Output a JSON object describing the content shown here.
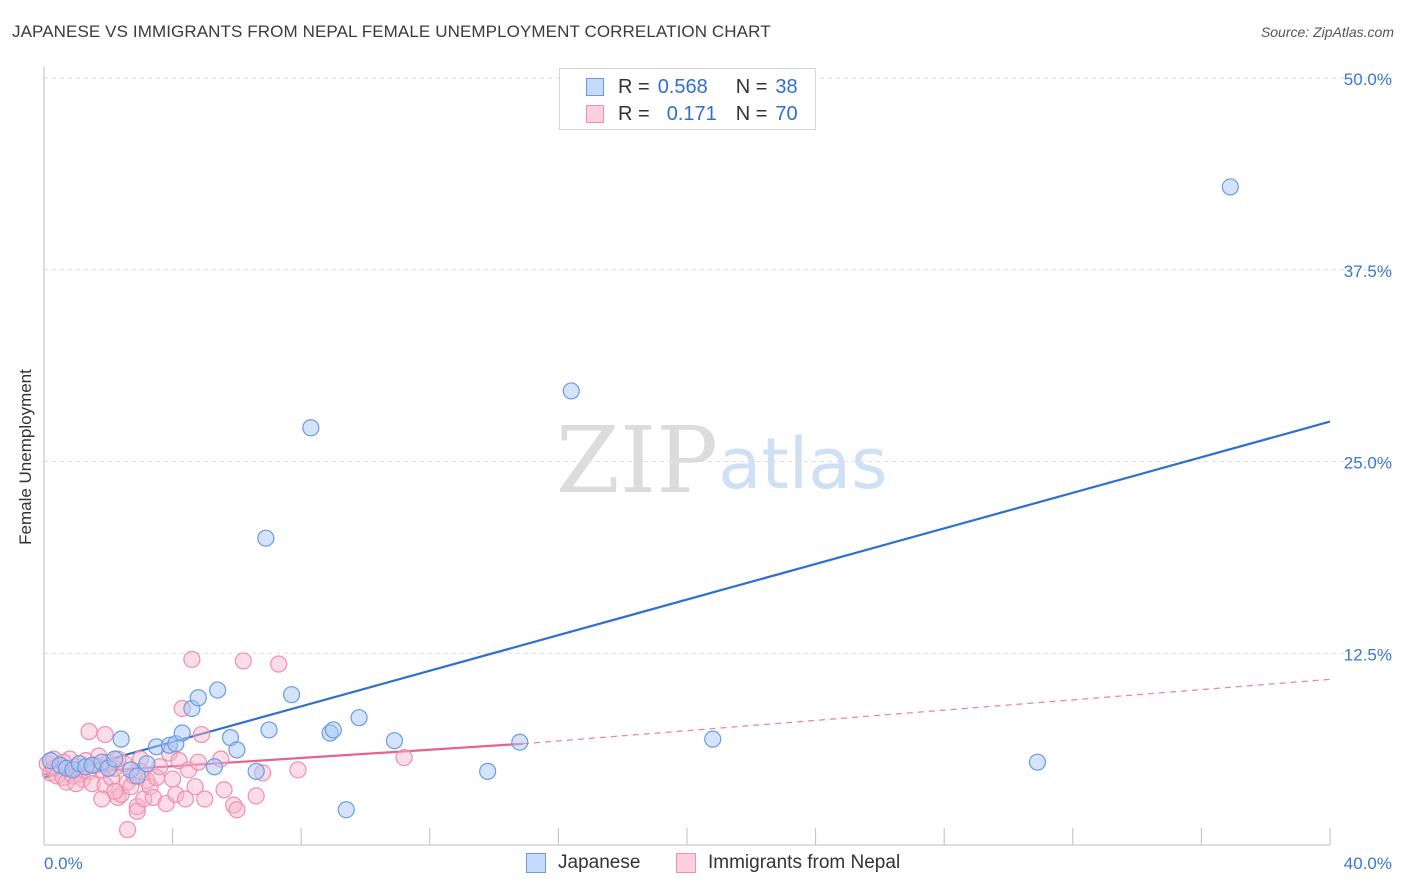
{
  "header": {
    "title": "JAPANESE VS IMMIGRANTS FROM NEPAL FEMALE UNEMPLOYMENT CORRELATION CHART",
    "source": "Source: ZipAtlas.com"
  },
  "watermark": {
    "zip": "ZIP",
    "atlas": "atlas"
  },
  "legend_top": {
    "rows": [
      {
        "r_label": "R =",
        "r_value": "0.568",
        "n_label": "N =",
        "n_value": "38"
      },
      {
        "r_label": "R =",
        "r_value": "0.171",
        "n_label": "N =",
        "n_value": "70"
      }
    ]
  },
  "chart_data": {
    "type": "scatter",
    "title": "JAPANESE VS IMMIGRANTS FROM NEPAL FEMALE UNEMPLOYMENT CORRELATION CHART",
    "xlabel": "",
    "ylabel": "Female Unemployment",
    "xlim": [
      0,
      40
    ],
    "ylim": [
      0,
      50
    ],
    "x_tick_labels": [
      "0.0%",
      "40.0%"
    ],
    "y_tick_labels": [
      "12.5%",
      "25.0%",
      "37.5%",
      "50.0%"
    ],
    "y_tick_values": [
      12.5,
      25.0,
      37.5,
      50.0
    ],
    "grid": true,
    "colors": {
      "japanese": "#2f6fd0",
      "nepal": "#e8628f",
      "tick_label": "#3b76d0"
    },
    "series": [
      {
        "name": "Japanese",
        "points": [
          [
            0.2,
            5.5
          ],
          [
            0.5,
            5.2
          ],
          [
            0.7,
            5.0
          ],
          [
            0.9,
            4.9
          ],
          [
            1.1,
            5.3
          ],
          [
            1.3,
            5.1
          ],
          [
            1.5,
            5.2
          ],
          [
            1.8,
            5.4
          ],
          [
            2.0,
            5.0
          ],
          [
            2.2,
            5.6
          ],
          [
            2.4,
            6.9
          ],
          [
            2.7,
            4.9
          ],
          [
            2.9,
            4.5
          ],
          [
            3.2,
            5.3
          ],
          [
            3.5,
            6.4
          ],
          [
            3.9,
            6.5
          ],
          [
            4.1,
            6.6
          ],
          [
            4.3,
            7.3
          ],
          [
            4.6,
            8.9
          ],
          [
            4.8,
            9.6
          ],
          [
            5.3,
            5.1
          ],
          [
            5.4,
            10.1
          ],
          [
            5.8,
            7.0
          ],
          [
            6.0,
            6.2
          ],
          [
            6.6,
            4.8
          ],
          [
            6.9,
            20.0
          ],
          [
            7.0,
            7.5
          ],
          [
            7.7,
            9.8
          ],
          [
            8.3,
            27.2
          ],
          [
            8.9,
            7.3
          ],
          [
            9.0,
            7.5
          ],
          [
            9.4,
            2.3
          ],
          [
            9.8,
            8.3
          ],
          [
            10.9,
            6.8
          ],
          [
            13.8,
            4.8
          ],
          [
            14.8,
            6.7
          ],
          [
            20.8,
            6.9
          ],
          [
            30.9,
            5.4
          ],
          [
            36.9,
            42.9
          ],
          [
            16.4,
            29.6
          ]
        ],
        "trend": {
          "x0": 0,
          "y0": 4.4,
          "x1": 40,
          "y1": 27.6
        }
      },
      {
        "name": "Immigrants from Nepal",
        "points": [
          [
            0.1,
            5.3
          ],
          [
            0.2,
            4.7
          ],
          [
            0.3,
            5.0
          ],
          [
            0.4,
            4.5
          ],
          [
            0.5,
            5.2
          ],
          [
            0.6,
            4.4
          ],
          [
            0.7,
            4.1
          ],
          [
            0.8,
            5.6
          ],
          [
            0.9,
            4.5
          ],
          [
            1.0,
            5.1
          ],
          [
            1.1,
            4.6
          ],
          [
            1.2,
            4.3
          ],
          [
            1.3,
            5.5
          ],
          [
            1.4,
            4.8
          ],
          [
            1.5,
            4.0
          ],
          [
            1.4,
            7.4
          ],
          [
            1.6,
            5.2
          ],
          [
            1.7,
            5.8
          ],
          [
            1.8,
            4.9
          ],
          [
            1.9,
            3.9
          ],
          [
            1.8,
            3.0
          ],
          [
            2.0,
            5.4
          ],
          [
            2.1,
            4.4
          ],
          [
            2.2,
            5.0
          ],
          [
            2.3,
            3.1
          ],
          [
            2.4,
            3.3
          ],
          [
            2.5,
            5.3
          ],
          [
            2.6,
            4.1
          ],
          [
            2.7,
            3.8
          ],
          [
            2.6,
            1.0
          ],
          [
            2.8,
            4.5
          ],
          [
            2.9,
            2.5
          ],
          [
            2.9,
            2.2
          ],
          [
            3.0,
            5.6
          ],
          [
            3.1,
            3.0
          ],
          [
            3.2,
            4.2
          ],
          [
            3.3,
            3.8
          ],
          [
            3.4,
            3.1
          ],
          [
            3.5,
            4.4
          ],
          [
            3.6,
            5.1
          ],
          [
            1.9,
            7.2
          ],
          [
            3.8,
            2.7
          ],
          [
            3.9,
            6.0
          ],
          [
            4.0,
            4.3
          ],
          [
            4.1,
            3.3
          ],
          [
            4.2,
            5.5
          ],
          [
            4.3,
            8.9
          ],
          [
            4.5,
            4.9
          ],
          [
            4.6,
            12.1
          ],
          [
            4.7,
            3.8
          ],
          [
            4.8,
            5.4
          ],
          [
            4.9,
            7.2
          ],
          [
            5.0,
            3.0
          ],
          [
            5.6,
            3.6
          ],
          [
            5.9,
            2.6
          ],
          [
            5.5,
            5.6
          ],
          [
            6.0,
            2.3
          ],
          [
            6.2,
            12.0
          ],
          [
            6.6,
            3.2
          ],
          [
            6.8,
            4.7
          ],
          [
            7.3,
            11.8
          ],
          [
            7.9,
            4.9
          ],
          [
            11.2,
            5.7
          ],
          [
            0.3,
            5.6
          ],
          [
            0.6,
            5.4
          ],
          [
            1.0,
            4.0
          ],
          [
            2.3,
            5.6
          ],
          [
            3.0,
            4.8
          ],
          [
            2.2,
            3.5
          ],
          [
            4.4,
            3.0
          ]
        ],
        "trend": {
          "x0": 0,
          "y0": 4.6,
          "x1": 14.9,
          "y1": 6.6
        },
        "trend_dashed": {
          "x0": 14.9,
          "y0": 6.6,
          "x1": 40,
          "y1": 10.8
        }
      }
    ]
  },
  "bottom_legend": {
    "japanese": "Japanese",
    "nepal": "Immigrants from Nepal"
  }
}
